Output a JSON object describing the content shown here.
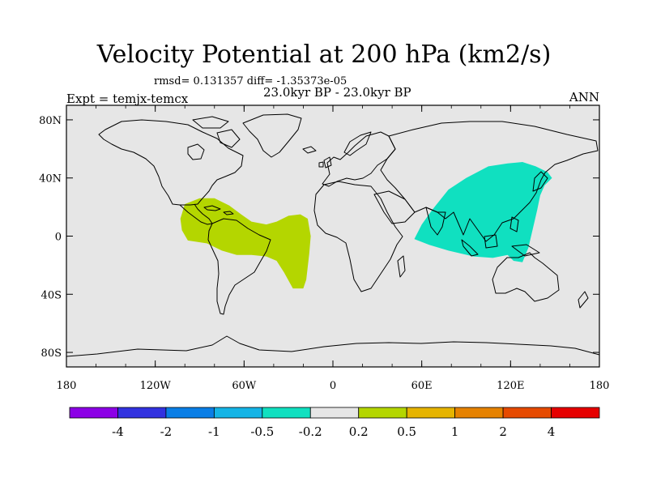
{
  "title": "Velocity Potential at 200 hPa (km2/s)",
  "stats_line": "rmsd= 0.131357 diff= -1.35373e-05",
  "period": "23.0kyr BP - 23.0kyr BP",
  "experiment": "Expt = temjx-temcx",
  "season": "ANN",
  "map_data": {
    "background_color": "#e6e6e6",
    "lon_range": [
      -180,
      180
    ],
    "lat_range": [
      -90,
      90
    ],
    "x_ticks": [
      {
        "value": -180,
        "label": "180"
      },
      {
        "value": -120,
        "label": "120W"
      },
      {
        "value": -60,
        "label": "60W"
      },
      {
        "value": 0,
        "label": "0"
      },
      {
        "value": 60,
        "label": "60E"
      },
      {
        "value": 120,
        "label": "120E"
      },
      {
        "value": 180,
        "label": "180"
      }
    ],
    "y_ticks": [
      {
        "value": 80,
        "label": "80N"
      },
      {
        "value": 40,
        "label": "40N"
      },
      {
        "value": 0,
        "label": "0"
      },
      {
        "value": -40,
        "label": "40S"
      },
      {
        "value": -80,
        "label": "80S"
      }
    ],
    "regions": [
      {
        "name": "americas-atlantic-positive",
        "range": "0.2 to 0.5",
        "color": "#b4d600",
        "outline": [
          [
            -100,
            22
          ],
          [
            -90,
            26
          ],
          [
            -80,
            26
          ],
          [
            -70,
            21
          ],
          [
            -62,
            15
          ],
          [
            -55,
            10
          ],
          [
            -45,
            8
          ],
          [
            -38,
            10
          ],
          [
            -30,
            14
          ],
          [
            -22,
            15
          ],
          [
            -17,
            12
          ],
          [
            -15,
            0
          ],
          [
            -16,
            -12
          ],
          [
            -18,
            -30
          ],
          [
            -20,
            -36
          ],
          [
            -27,
            -36
          ],
          [
            -33,
            -25
          ],
          [
            -38,
            -17
          ],
          [
            -45,
            -14
          ],
          [
            -55,
            -13
          ],
          [
            -65,
            -13
          ],
          [
            -75,
            -10
          ],
          [
            -85,
            -5
          ],
          [
            -98,
            -3
          ],
          [
            -102,
            4
          ],
          [
            -103,
            12
          ]
        ]
      },
      {
        "name": "asia-pacific-negative",
        "range": "-0.5 to -0.2",
        "color": "#10e0c0",
        "outline": [
          [
            55,
            -2
          ],
          [
            60,
            8
          ],
          [
            67,
            18
          ],
          [
            78,
            32
          ],
          [
            90,
            40
          ],
          [
            105,
            48
          ],
          [
            118,
            50
          ],
          [
            128,
            51
          ],
          [
            137,
            48
          ],
          [
            145,
            44
          ],
          [
            148,
            40
          ],
          [
            143,
            35
          ],
          [
            140,
            28
          ],
          [
            138,
            18
          ],
          [
            135,
            5
          ],
          [
            132,
            -8
          ],
          [
            128,
            -18
          ],
          [
            122,
            -17
          ],
          [
            118,
            -13
          ],
          [
            108,
            -15
          ],
          [
            95,
            -14
          ],
          [
            78,
            -10
          ],
          [
            65,
            -6
          ]
        ]
      }
    ],
    "colorbar": {
      "colors": [
        "#8c00e6",
        "#3232e0",
        "#0a7ee6",
        "#14b4e6",
        "#10e0c0",
        "#e6e6e6",
        "#b4d600",
        "#e6b400",
        "#e68200",
        "#e64a00",
        "#e60000"
      ],
      "labels": [
        "-4",
        "-2",
        "-1",
        "-0.5",
        "-0.2",
        "0.2",
        "0.5",
        "1",
        "2",
        "4"
      ]
    }
  }
}
